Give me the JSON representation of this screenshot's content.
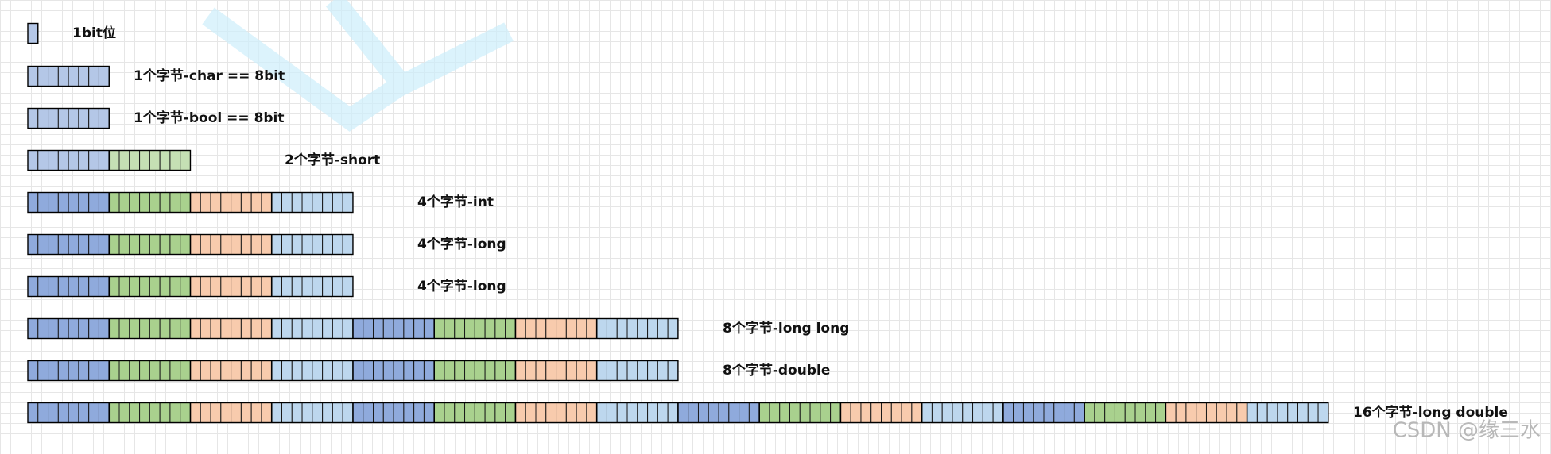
{
  "rows": [
    {
      "label": "1bit位",
      "bits": 1,
      "colors": [
        "#b4c7e7"
      ]
    },
    {
      "label": "1个字节-char == 8bit",
      "bits": 8,
      "colors": [
        "#b4c7e7"
      ]
    },
    {
      "label": "1个字节-bool == 8bit",
      "bits": 8,
      "colors": [
        "#b4c7e7"
      ]
    },
    {
      "label": "2个字节-short",
      "bits": 16,
      "colors": [
        "#b4c7e7",
        "#c5e0b4"
      ]
    },
    {
      "label": "4个字节-int",
      "bits": 32,
      "colors": [
        "#8faadc",
        "#a9d18e",
        "#f8cbad",
        "#bdd7ee"
      ]
    },
    {
      "label": "4个字节-long",
      "bits": 32,
      "colors": [
        "#8faadc",
        "#a9d18e",
        "#f8cbad",
        "#bdd7ee"
      ]
    },
    {
      "label": "4个字节-long",
      "bits": 32,
      "colors": [
        "#8faadc",
        "#a9d18e",
        "#f8cbad",
        "#bdd7ee"
      ]
    },
    {
      "label": "8个字节-long long",
      "bits": 64,
      "colors": [
        "#8faadc",
        "#a9d18e",
        "#f8cbad",
        "#bdd7ee"
      ]
    },
    {
      "label": "8个字节-double",
      "bits": 64,
      "colors": [
        "#8faadc",
        "#a9d18e",
        "#f8cbad",
        "#bdd7ee"
      ]
    },
    {
      "label": "16个字节-long double",
      "bits": 128,
      "colors": [
        "#8faadc",
        "#a9d18e",
        "#f8cbad",
        "#bdd7ee"
      ]
    }
  ],
  "watermark": "CSDN @缘三水"
}
